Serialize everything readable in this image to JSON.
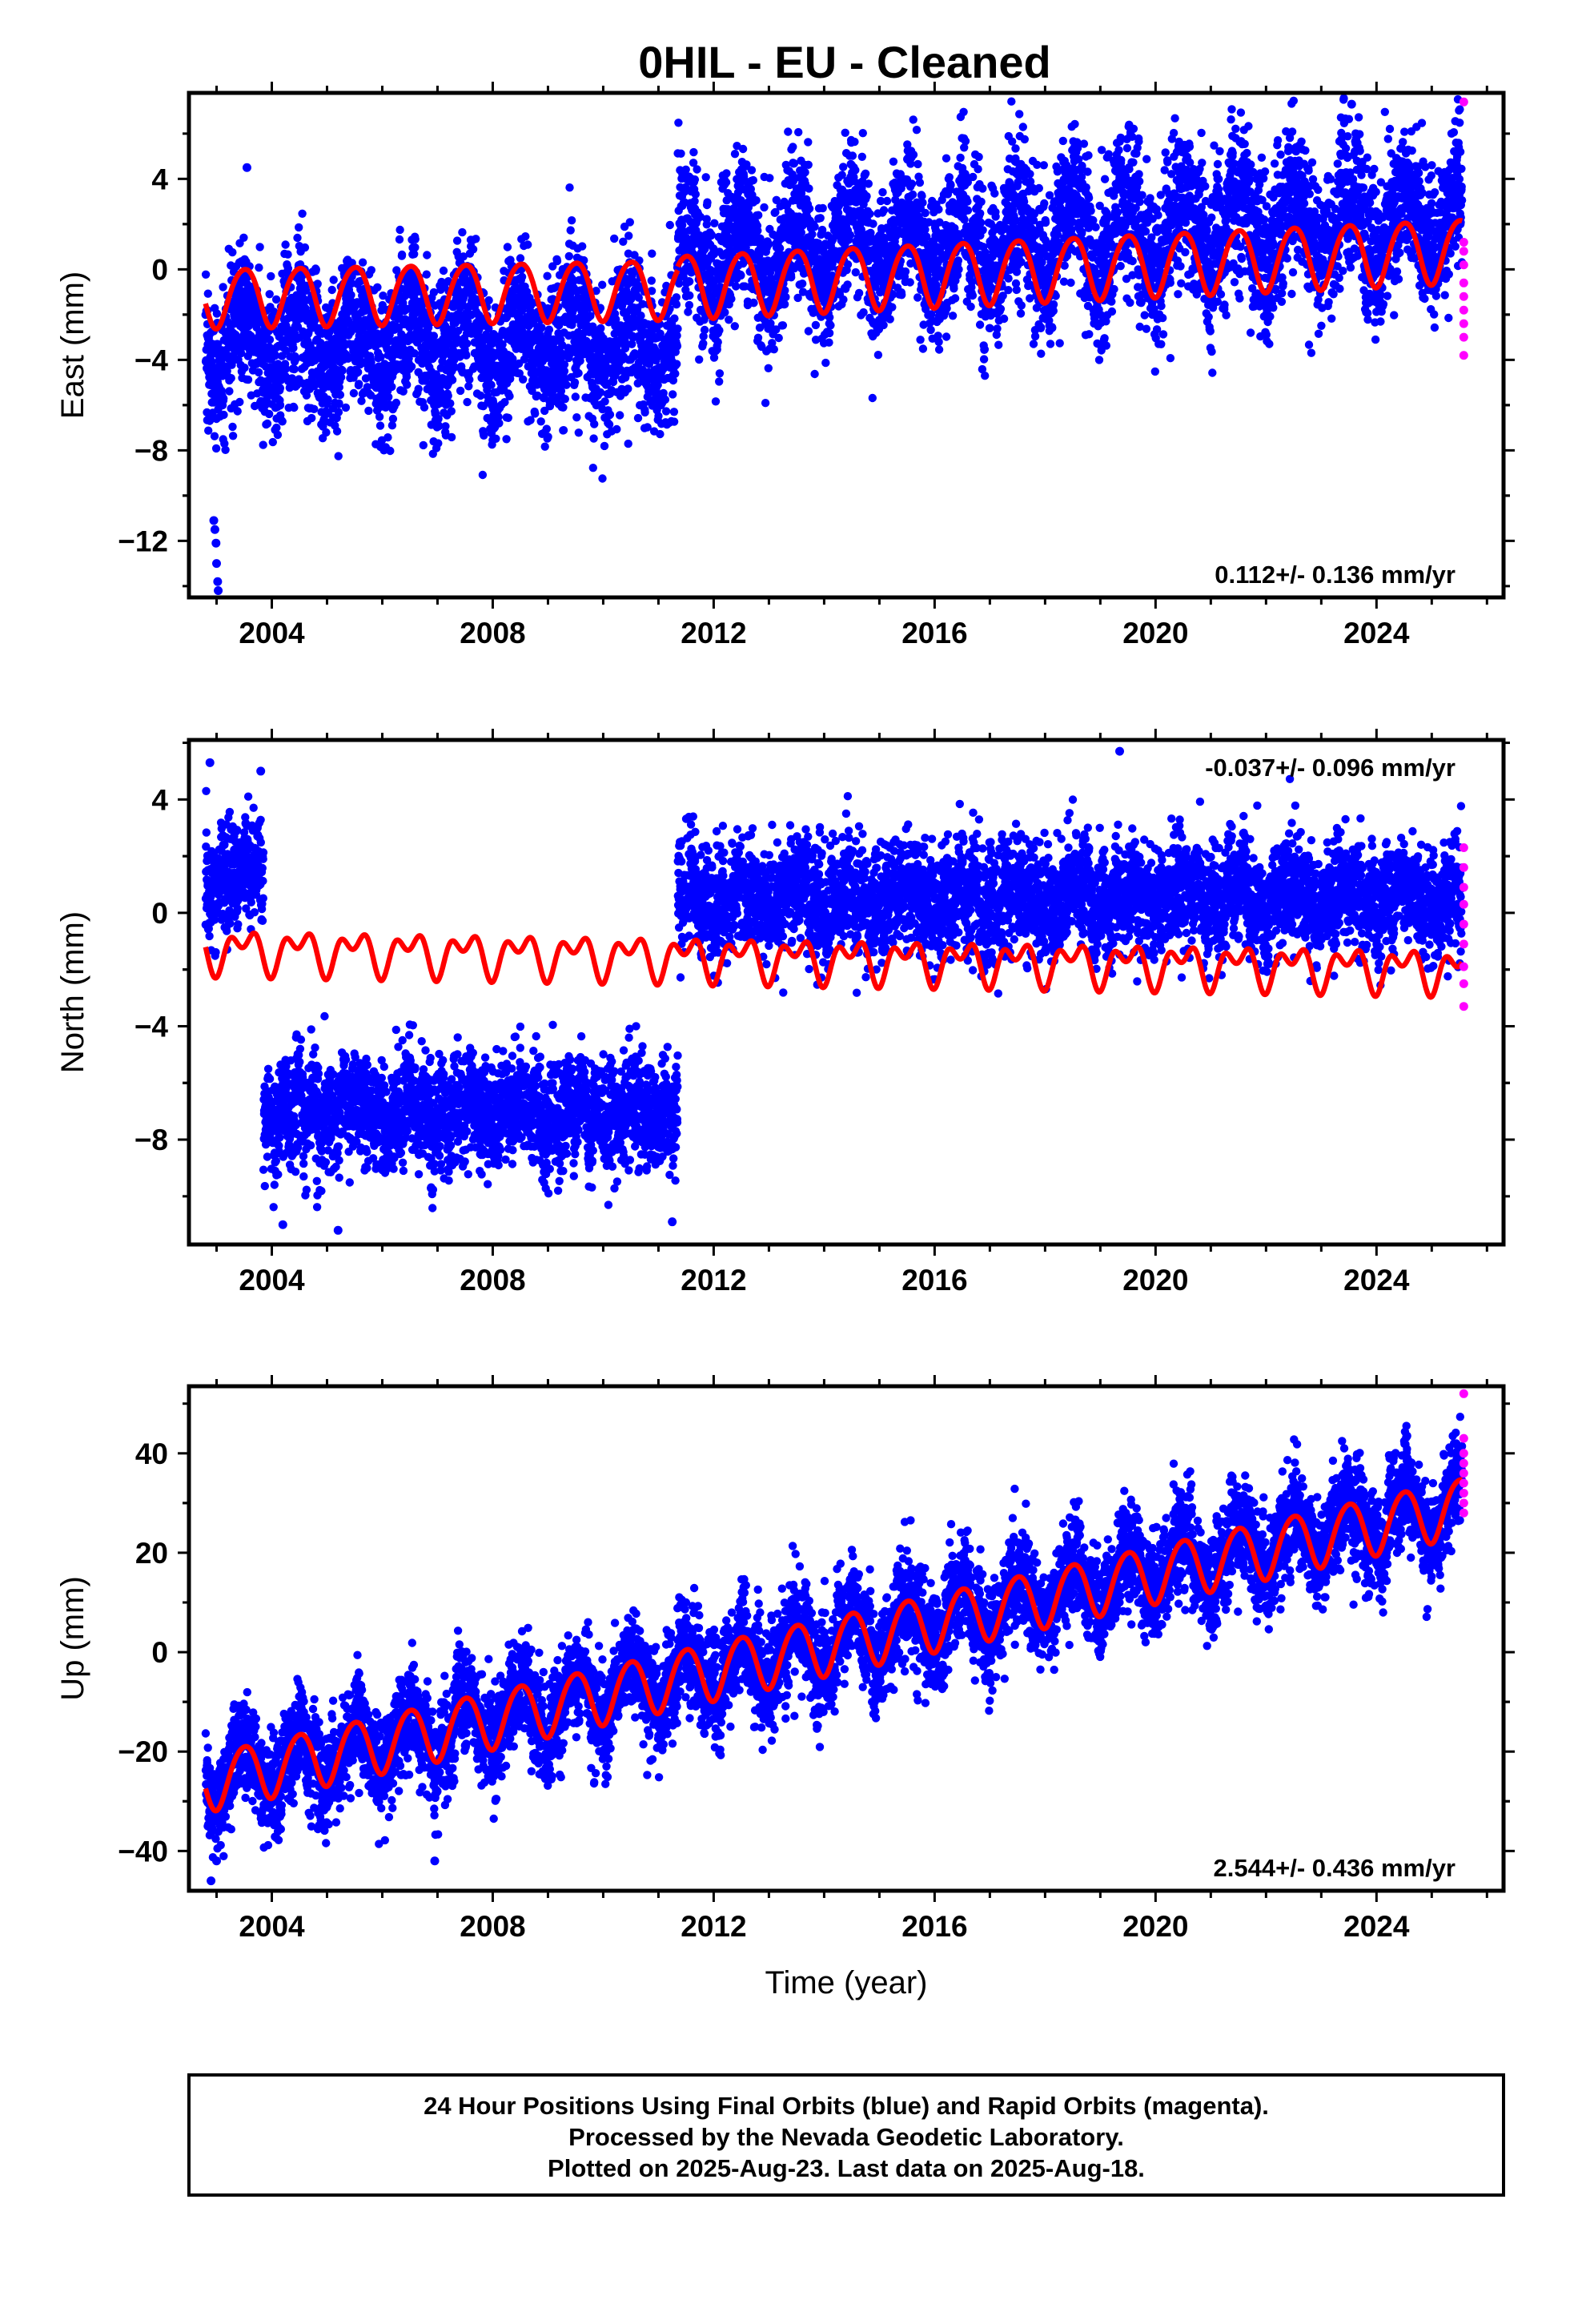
{
  "title": "0HIL  - EU - Cleaned",
  "colors": {
    "final": "#0000ff",
    "rapid": "#ff00ff",
    "model": "#ff0000",
    "frame": "#000000"
  },
  "footer": {
    "line1": "24 Hour Positions Using Final Orbits (blue) and Rapid Orbits (magenta).",
    "line2": "Processed by the Nevada Geodetic Laboratory.",
    "line3": "Plotted on 2025-Aug-23. Last data on 2025-Aug-18."
  },
  "chart_data": [
    {
      "type": "scatter",
      "component": "east",
      "ylabel": "East (mm)",
      "xlabel": "",
      "xlim": [
        2002.5,
        2026.3
      ],
      "ylim": [
        -14.5,
        7.8
      ],
      "xticks": [
        2004,
        2008,
        2012,
        2016,
        2020,
        2024
      ],
      "xtick_labels": [
        "2004",
        "2008",
        "2012",
        "2016",
        "2020",
        "2024"
      ],
      "yticks": [
        -12,
        -8,
        -4,
        0,
        4
      ],
      "ytick_labels": [
        "−12",
        "−8",
        "−4",
        "0",
        "4"
      ],
      "rate_label": "0.112+/- 0.136 mm/yr",
      "rate_position": "bottom-right",
      "series": [
        {
          "name": "Final Orbits (blue)",
          "segments": [
            {
              "from": 2002.8,
              "to": 2011.35,
              "mean": -3.2,
              "scatter": 1.6,
              "seasonal_amp": 1.3
            },
            {
              "from": 2011.35,
              "to": 2025.55,
              "mean": 0.6,
              "trend": 0.12,
              "scatter": 1.6,
              "seasonal_amp": 1.5
            }
          ],
          "outliers": [
            [
              2002.95,
              -11.1
            ],
            [
              2002.97,
              -11.5
            ],
            [
              2002.99,
              -12.1
            ],
            [
              2003.0,
              -13.0
            ],
            [
              2003.02,
              -13.8
            ],
            [
              2003.03,
              -14.2
            ],
            [
              2003.55,
              4.5
            ],
            [
              2023.55,
              7.3
            ]
          ]
        },
        {
          "name": "Rapid Orbits (magenta)",
          "points": [
            [
              2025.58,
              7.4
            ],
            [
              2025.58,
              1.2
            ],
            [
              2025.58,
              0.8
            ],
            [
              2025.58,
              0.2
            ],
            [
              2025.58,
              -0.6
            ],
            [
              2025.58,
              -1.2
            ],
            [
              2025.58,
              -1.8
            ],
            [
              2025.58,
              -2.4
            ],
            [
              2025.58,
              -3.0
            ],
            [
              2025.58,
              -3.8
            ]
          ]
        },
        {
          "name": "Model fit (red)",
          "segments": [
            {
              "from": 2002.8,
              "to": 2011.35,
              "start": -1.2,
              "end": -0.8,
              "annual_amp": 1.3,
              "semiannual_amp": 0.15
            },
            {
              "from": 2011.35,
              "to": 2025.55,
              "start": -0.7,
              "end": 0.9,
              "annual_amp": 1.4,
              "semiannual_amp": 0.15
            }
          ]
        }
      ]
    },
    {
      "type": "scatter",
      "component": "north",
      "ylabel": "North (mm)",
      "xlabel": "",
      "xlim": [
        2002.5,
        2026.3
      ],
      "ylim": [
        -11.7,
        6.1
      ],
      "xticks": [
        2004,
        2008,
        2012,
        2016,
        2020,
        2024
      ],
      "xtick_labels": [
        "2004",
        "2008",
        "2012",
        "2016",
        "2020",
        "2024"
      ],
      "yticks": [
        -8,
        -4,
        0,
        4
      ],
      "ytick_labels": [
        "−8",
        "−4",
        "0",
        "4"
      ],
      "rate_label": "-0.037+/- 0.096 mm/yr",
      "rate_position": "top-right",
      "series": [
        {
          "name": "Final Orbits (blue)",
          "segments": [
            {
              "from": 2002.8,
              "to": 2003.85,
              "mean": 1.4,
              "scatter": 1.0,
              "seasonal_amp": 0.4
            },
            {
              "from": 2003.85,
              "to": 2011.35,
              "mean": -7.0,
              "scatter": 0.95,
              "seasonal_amp": 0.4
            },
            {
              "from": 2011.35,
              "to": 2025.55,
              "mean": 0.55,
              "scatter": 0.95,
              "seasonal_amp": 0.4
            }
          ],
          "outliers": [
            [
              2002.88,
              5.3
            ],
            [
              2003.8,
              5.0
            ],
            [
              2019.35,
              5.7
            ],
            [
              2004.2,
              -11.0
            ],
            [
              2005.2,
              -11.2
            ],
            [
              2011.25,
              -10.9
            ]
          ]
        },
        {
          "name": "Rapid Orbits (magenta)",
          "points": [
            [
              2025.58,
              2.3
            ],
            [
              2025.58,
              1.6
            ],
            [
              2025.58,
              0.9
            ],
            [
              2025.58,
              0.3
            ],
            [
              2025.58,
              -0.4
            ],
            [
              2025.58,
              -1.1
            ],
            [
              2025.58,
              -1.9
            ],
            [
              2025.58,
              -2.5
            ],
            [
              2025.58,
              -3.3
            ]
          ]
        },
        {
          "name": "Model fit (red)",
          "segments": [
            {
              "from": 2002.8,
              "to": 2025.55,
              "start": -1.3,
              "end": -2.0,
              "annual_amp": 0.55,
              "semiannual_amp": 0.45
            }
          ]
        }
      ]
    },
    {
      "type": "scatter",
      "component": "up",
      "ylabel": "Up (mm)",
      "xlabel": "Time (year)",
      "xlim": [
        2002.5,
        2026.3
      ],
      "ylim": [
        -48,
        53.5
      ],
      "xticks": [
        2004,
        2008,
        2012,
        2016,
        2020,
        2024
      ],
      "xtick_labels": [
        "2004",
        "2008",
        "2012",
        "2016",
        "2020",
        "2024"
      ],
      "yticks": [
        -40,
        -20,
        0,
        20,
        40
      ],
      "ytick_labels": [
        "−40",
        "−20",
        "0",
        "20",
        "40"
      ],
      "rate_label": "2.544+/- 0.436 mm/yr",
      "rate_position": "bottom-right",
      "series": [
        {
          "name": "Final Orbits (blue)",
          "segments": [
            {
              "from": 2002.8,
              "to": 2025.55,
              "start": -26.0,
              "end": 30.0,
              "scatter": 5.0,
              "seasonal_amp": 5.5
            }
          ],
          "outliers": [
            [
              2002.9,
              -46
            ],
            [
              2003.0,
              -42
            ],
            [
              2006.95,
              -42
            ],
            [
              2024.55,
              43.5
            ]
          ]
        },
        {
          "name": "Rapid Orbits (magenta)",
          "points": [
            [
              2025.58,
              52
            ],
            [
              2025.58,
              43
            ],
            [
              2025.58,
              40
            ],
            [
              2025.58,
              38
            ],
            [
              2025.58,
              36
            ],
            [
              2025.58,
              34
            ],
            [
              2025.58,
              32
            ],
            [
              2025.58,
              30
            ],
            [
              2025.58,
              28
            ]
          ]
        },
        {
          "name": "Model fit (red)",
          "segments": [
            {
              "from": 2002.8,
              "to": 2025.55,
              "start": -26.0,
              "end": 29.5,
              "annual_amp": 5.8,
              "semiannual_amp": 0.6
            }
          ]
        }
      ]
    }
  ]
}
